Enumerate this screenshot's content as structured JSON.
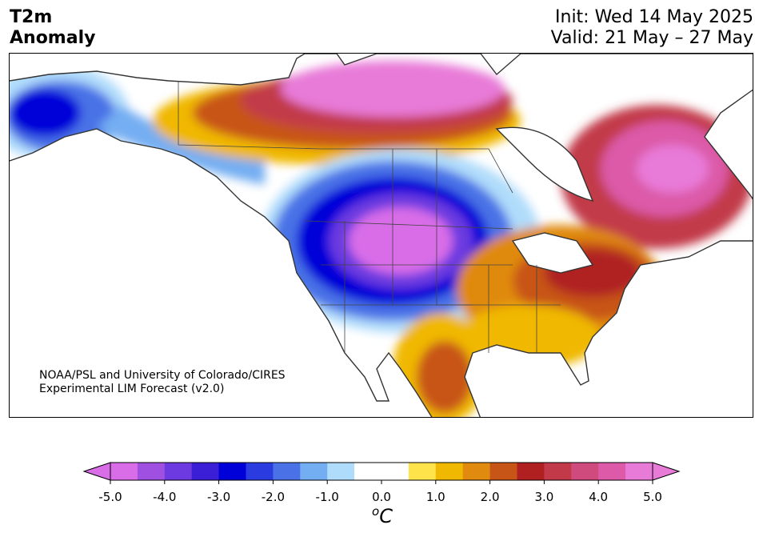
{
  "header": {
    "title_line1": "T2m",
    "title_line2": "Anomaly",
    "init_text": "Init: Wed 14 May 2025",
    "valid_text": "Valid: 21 May – 27 May"
  },
  "credit": {
    "line1": "NOAA/PSL and University of Colorado/CIRES",
    "line2": "Experimental LIM Forecast (v2.0)"
  },
  "colorbar": {
    "units_symbol": "o",
    "units_letter": "C",
    "tick_labels": [
      "-5.0",
      "-4.0",
      "-3.0",
      "-2.0",
      "-1.0",
      "0.0",
      "1.0",
      "2.0",
      "3.0",
      "4.0",
      "5.0"
    ],
    "levels": [
      -5.0,
      -4.5,
      -4.0,
      -3.5,
      -3.0,
      -2.5,
      -2.0,
      -1.5,
      -1.0,
      -0.5,
      0.5,
      1.0,
      1.5,
      2.0,
      2.5,
      3.0,
      3.5,
      4.0,
      4.5,
      5.0
    ],
    "colors": [
      "#d96de8",
      "#a050e0",
      "#6c3ae0",
      "#3a1fd6",
      "#0000d8",
      "#2a3be0",
      "#4a72e6",
      "#74aef2",
      "#b0dcfb",
      "#ffffff",
      "#ffe34a",
      "#f0b800",
      "#e08a10",
      "#c85518",
      "#b02020",
      "#c23a4a",
      "#d04b7d",
      "#dc5aa8",
      "#e87ad8"
    ],
    "under_color": "#d96de8",
    "over_color": "#e87ad8"
  },
  "map": {
    "region": "North America",
    "variable": "2-m temperature anomaly",
    "features": [
      {
        "name": "cold-core-northern-rockies",
        "anomaly_min": -5.0
      },
      {
        "name": "cold-alaska-yukon",
        "anomaly_min": -3.0
      },
      {
        "name": "warm-northern-canada",
        "anomaly_max": 5.0
      },
      {
        "name": "warm-quebec-labrador",
        "anomaly_max": 5.0
      },
      {
        "name": "warm-great-lakes-northeast",
        "anomaly_max": 3.0
      },
      {
        "name": "warm-southeast-us",
        "anomaly_max": 2.0
      },
      {
        "name": "warm-mexico",
        "anomaly_max": 2.5
      }
    ]
  }
}
